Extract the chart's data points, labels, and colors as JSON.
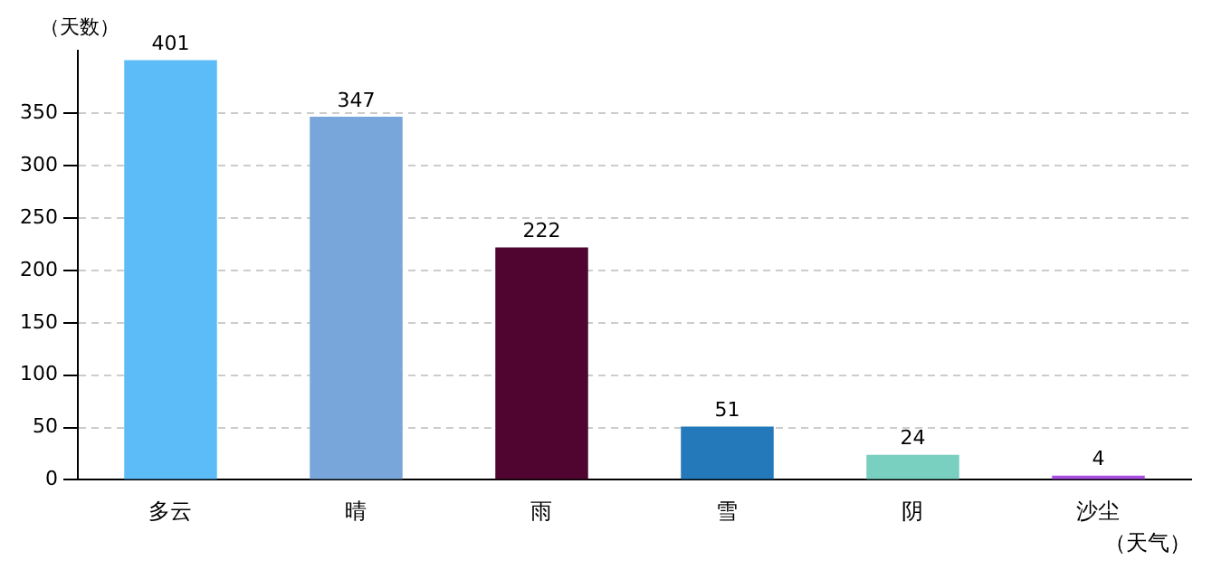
{
  "chart_data": {
    "type": "bar",
    "xlabel": "（天气）",
    "ylabel": "（天数）",
    "categories": [
      "多云",
      "晴",
      "雨",
      "雪",
      "阴",
      "沙尘"
    ],
    "values": [
      401,
      347,
      222,
      51,
      24,
      4
    ],
    "colors": [
      "#5bbcf8",
      "#78a6da",
      "#4f0530",
      "#2479bb",
      "#7ad0c0",
      "#a94ee0"
    ],
    "ylim": [
      0,
      410
    ],
    "yticks": [
      0,
      50,
      100,
      150,
      200,
      250,
      300,
      350
    ],
    "grid": "y",
    "legend": false,
    "data_labels": true
  }
}
